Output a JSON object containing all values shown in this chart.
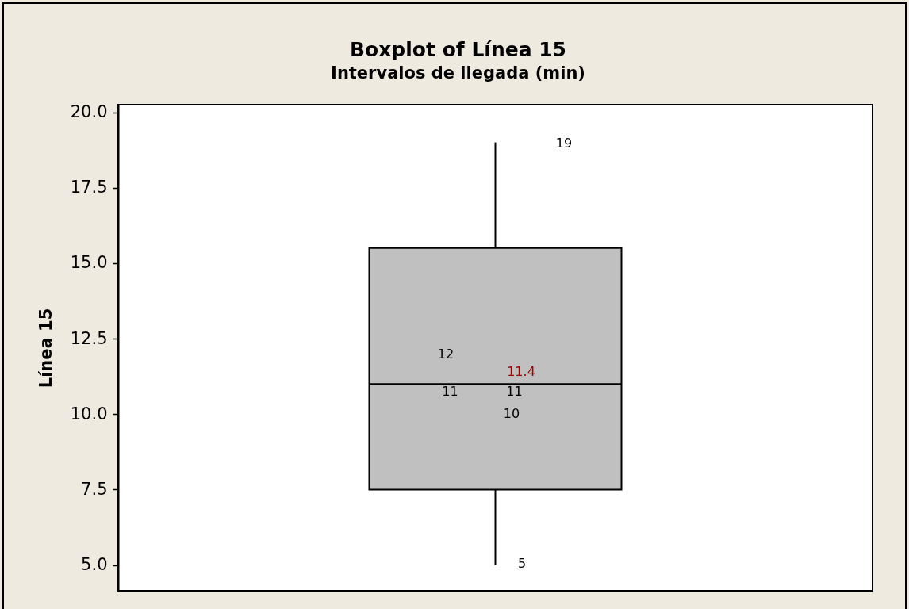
{
  "chart_data": {
    "type": "box",
    "title": "Boxplot of Línea 15",
    "subtitle": "Intervalos de llegada (min)",
    "ylabel": "Línea 15",
    "categories": [
      null
    ],
    "series": [
      {
        "color": "#c0c0c0",
        "boxes": [
          {
            "low": 5,
            "q1": 7.5,
            "median": 11,
            "q3": 15.5,
            "high": 19
          }
        ]
      }
    ],
    "ylim": [
      4.15,
      20.25
    ],
    "yticks": [
      {
        "value": 5,
        "label": "5.0"
      },
      7.5,
      {
        "value": 10,
        "label": "10.0"
      },
      12.5,
      {
        "value": 15,
        "label": "15.0"
      },
      17.5,
      {
        "value": 20,
        "label": "20.0"
      }
    ],
    "tick_labels": "y",
    "annotations": [
      "19",
      "12",
      {
        "text": "11",
        "y": 11
      },
      {
        "text": "11",
        "y": 11
      },
      "11.4",
      "10",
      "5"
    ]
  }
}
